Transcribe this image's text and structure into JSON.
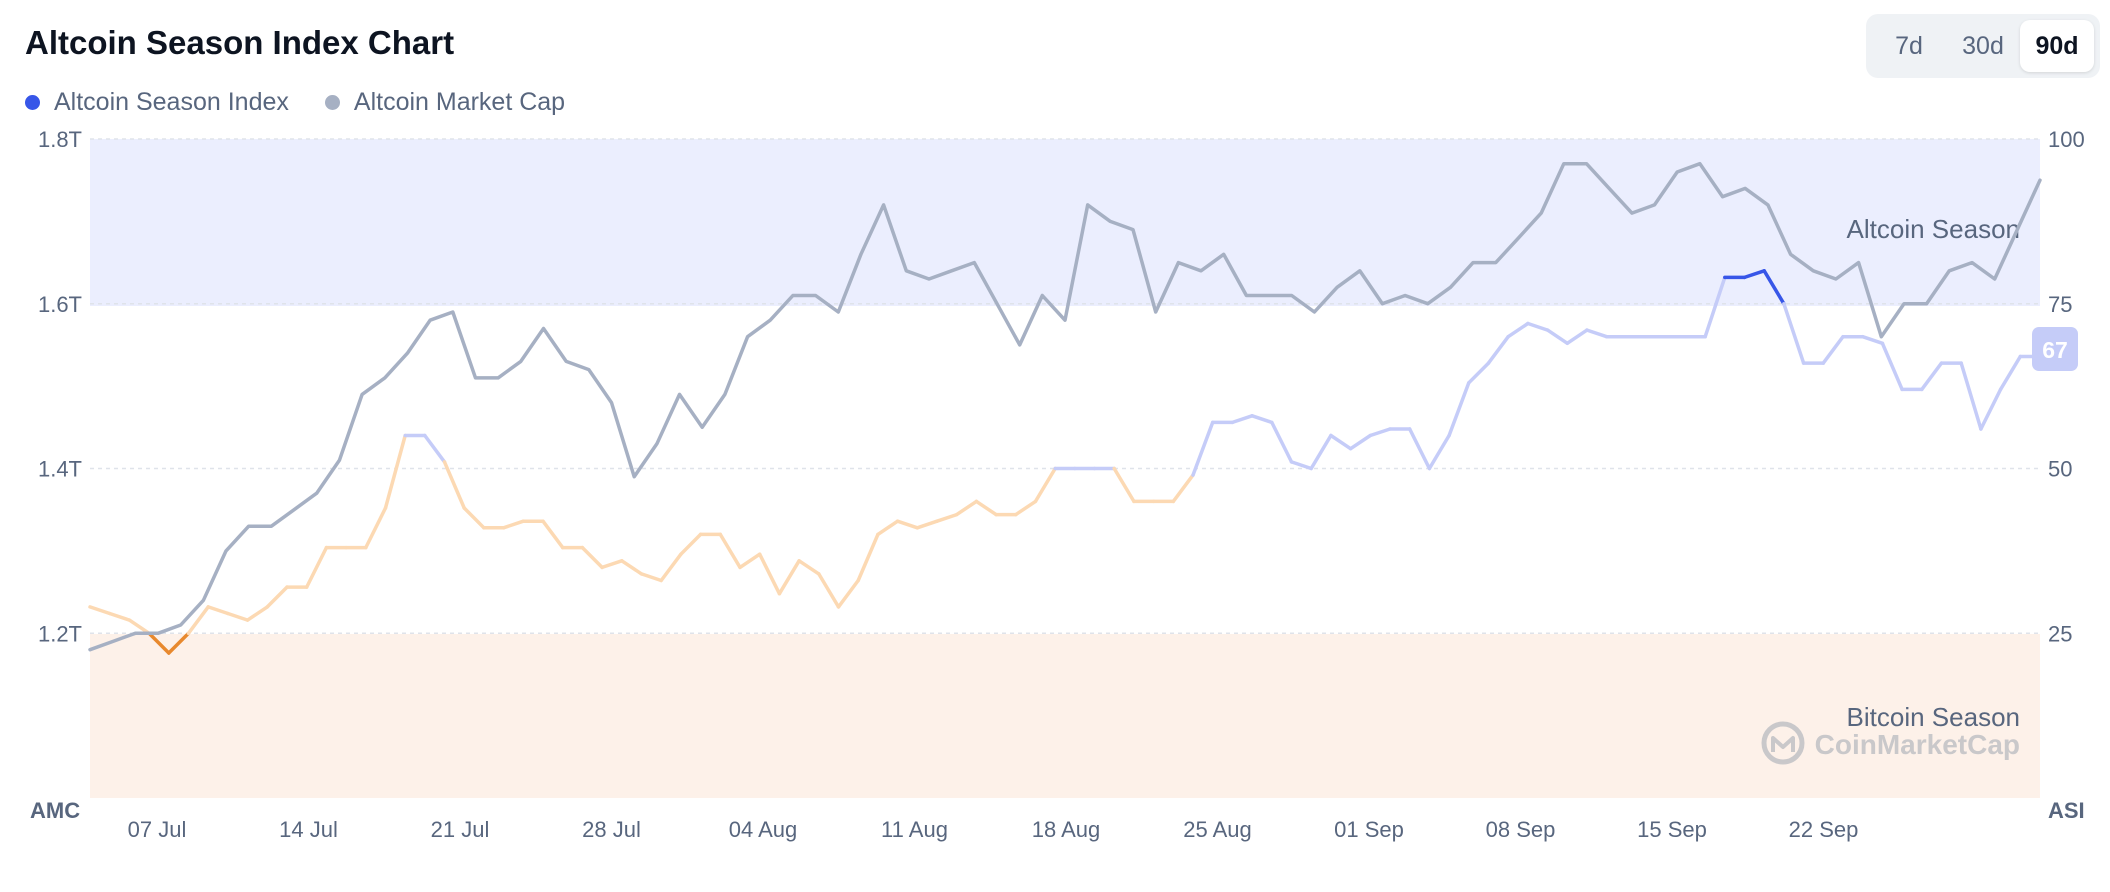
{
  "title": "Altcoin Season Index Chart",
  "legend": [
    {
      "label": "Altcoin Season Index",
      "color": "#3756e8"
    },
    {
      "label": "Altcoin Market Cap",
      "color": "#a6b0c3"
    }
  ],
  "range_buttons": [
    {
      "label": "7d",
      "active": false
    },
    {
      "label": "30d",
      "active": false
    },
    {
      "label": "90d",
      "active": true
    }
  ],
  "chart_data": {
    "type": "line",
    "left_axis_label": "AMC",
    "right_axis_label": "ASI",
    "left_axis": {
      "ticks": [
        1.2,
        1.4,
        1.6,
        1.8
      ],
      "tick_labels": [
        "1.2T",
        "1.4T",
        "1.6T",
        "1.8T"
      ],
      "range": [
        1.0,
        1.8
      ]
    },
    "right_axis": {
      "ticks": [
        25,
        50,
        75,
        100
      ],
      "tick_labels": [
        "25",
        "50",
        "75",
        "100"
      ],
      "range": [
        0,
        100
      ]
    },
    "x_ticks": [
      "07 Jul",
      "14 Jul",
      "21 Jul",
      "28 Jul",
      "04 Aug",
      "11 Aug",
      "18 Aug",
      "25 Aug",
      "01 Sep",
      "08 Sep",
      "15 Sep",
      "22 Sep"
    ],
    "zones": [
      {
        "label": "Altcoin Season",
        "from": 75,
        "to": 100,
        "color": "#ebeefe"
      },
      {
        "label": "Bitcoin Season",
        "from": 0,
        "to": 25,
        "color": "#fdf1e9"
      }
    ],
    "current_value_label": "67",
    "watermark": "CoinMarketCap",
    "series": [
      {
        "name": "Altcoin Market Cap",
        "axis": "left",
        "color": "#a6b0c3",
        "values": [
          1.18,
          1.19,
          1.2,
          1.2,
          1.21,
          1.24,
          1.3,
          1.33,
          1.33,
          1.35,
          1.37,
          1.41,
          1.49,
          1.51,
          1.54,
          1.58,
          1.59,
          1.51,
          1.51,
          1.53,
          1.57,
          1.53,
          1.52,
          1.48,
          1.39,
          1.43,
          1.49,
          1.45,
          1.49,
          1.56,
          1.58,
          1.61,
          1.61,
          1.59,
          1.66,
          1.72,
          1.64,
          1.63,
          1.64,
          1.65,
          1.6,
          1.55,
          1.61,
          1.58,
          1.72,
          1.7,
          1.69,
          1.59,
          1.65,
          1.64,
          1.66,
          1.61,
          1.61,
          1.61,
          1.59,
          1.62,
          1.64,
          1.6,
          1.61,
          1.6,
          1.62,
          1.65,
          1.65,
          1.68,
          1.71,
          1.77,
          1.77,
          1.74,
          1.71,
          1.72,
          1.76,
          1.77,
          1.73,
          1.74,
          1.72,
          1.66,
          1.64,
          1.63,
          1.65,
          1.56,
          1.6,
          1.6,
          1.64,
          1.65,
          1.63,
          1.69,
          1.75
        ]
      },
      {
        "name": "Altcoin Season Index",
        "axis": "right",
        "color": "#3756e8",
        "values": [
          29,
          28,
          27,
          25,
          22,
          25,
          29,
          28,
          27,
          29,
          32,
          32,
          38,
          38,
          38,
          44,
          55,
          55,
          51,
          44,
          41,
          41,
          42,
          42,
          38,
          38,
          35,
          36,
          34,
          33,
          37,
          40,
          40,
          35,
          37,
          31,
          36,
          34,
          29,
          33,
          40,
          42,
          41,
          42,
          43,
          45,
          43,
          43,
          45,
          50,
          50,
          50,
          50,
          45,
          45,
          45,
          49,
          57,
          57,
          58,
          57,
          51,
          50,
          55,
          53,
          55,
          56,
          56,
          50,
          55,
          63,
          66,
          70,
          72,
          71,
          69,
          71,
          70,
          70,
          70,
          70,
          70,
          70,
          79,
          79,
          80,
          75,
          66,
          66,
          70,
          70,
          69,
          62,
          62,
          66,
          66,
          56,
          62,
          67,
          67
        ]
      }
    ]
  }
}
